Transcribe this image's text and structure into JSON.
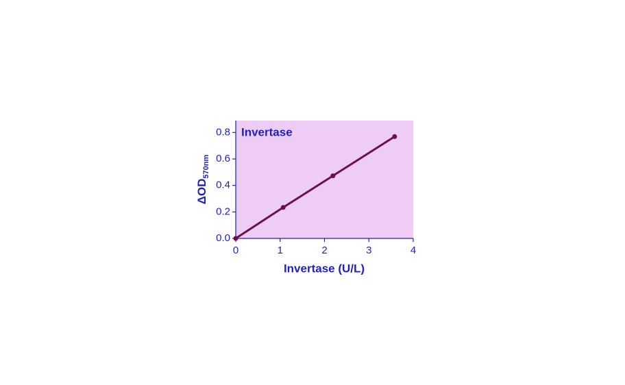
{
  "chart_data": {
    "type": "line",
    "annotation": "Invertase",
    "xlabel": "Invertase (U/L)",
    "ylabel": "ΔOD",
    "ylabel_sub": "570nm",
    "x": [
      0,
      1.07,
      2.19,
      3.58
    ],
    "series": [
      {
        "color": "#6b0f4a",
        "values": [
          0,
          0.234,
          0.473,
          0.769
        ]
      }
    ],
    "background": "#edcdf5",
    "xlim": [
      0,
      4
    ],
    "xticks": [
      0,
      1,
      2,
      3,
      4
    ],
    "ylim": [
      0,
      0.89
    ],
    "yticks": [
      {
        "value": 0,
        "label": "0.0"
      },
      0.2,
      0.4,
      0.6,
      0.8
    ]
  }
}
